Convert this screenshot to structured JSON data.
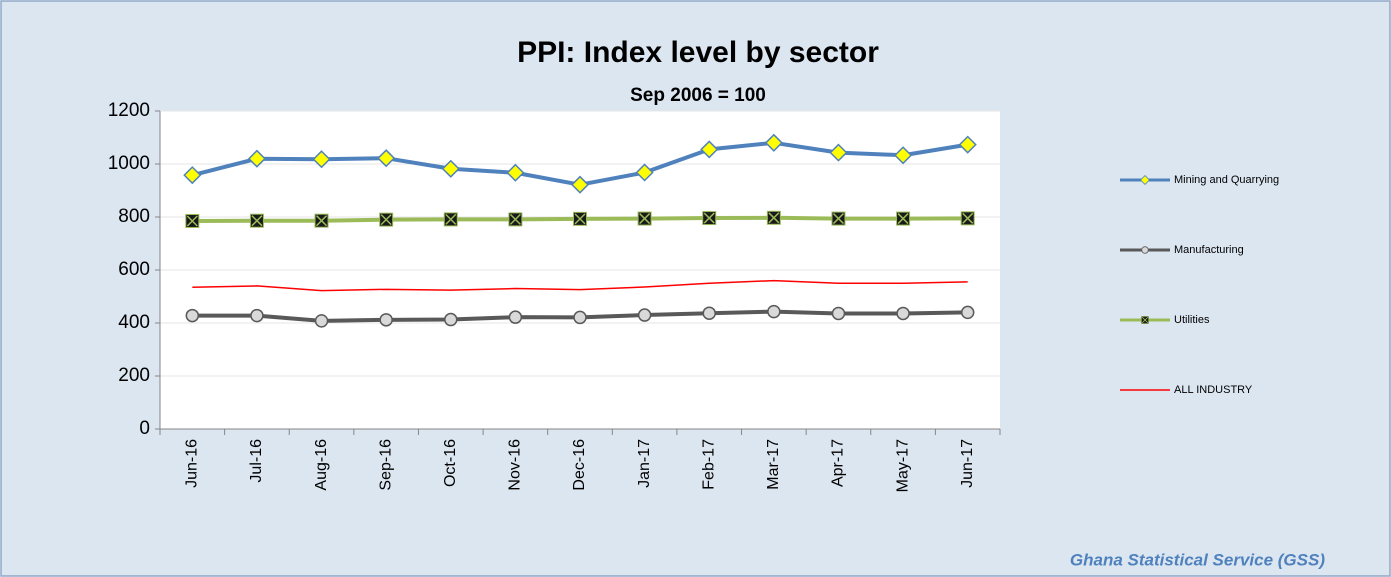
{
  "chart_data": {
    "type": "line",
    "title": "PPI:  Index level by sector",
    "subtitle": "Sep 2006 = 100",
    "source": "Ghana Statistical Service (GSS)",
    "categories": [
      "Jun-16",
      "Jul-16",
      "Aug-16",
      "Sep-16",
      "Oct-16",
      "Nov-16",
      "Dec-16",
      "Jan-17",
      "Feb-17",
      "Mar-17",
      "Apr-17",
      "May-17",
      "Jun-17"
    ],
    "series": [
      {
        "name": "Mining and Quarrying",
        "color": "#4f81bd",
        "marker": "diamond",
        "marker_color": "#ffff00",
        "values": [
          958,
          1020,
          1018,
          1022,
          982,
          967,
          922,
          968,
          1055,
          1080,
          1043,
          1033,
          1073
        ]
      },
      {
        "name": "Manufacturing",
        "color": "#595959",
        "marker": "circle",
        "marker_color": "#d9d9d9",
        "values": [
          428,
          428,
          408,
          412,
          413,
          422,
          421,
          430,
          437,
          443,
          436,
          436,
          440
        ]
      },
      {
        "name": "Utilities",
        "color": "#9bbb59",
        "marker": "square-x",
        "marker_color": "#1a1a1a",
        "values": [
          785,
          786,
          786,
          790,
          791,
          791,
          793,
          794,
          796,
          797,
          794,
          794,
          795
        ]
      },
      {
        "name": "ALL INDUSTRY",
        "color": "#ff0000",
        "marker": "none",
        "values": [
          535,
          540,
          522,
          527,
          524,
          530,
          526,
          536,
          550,
          560,
          550,
          550,
          555
        ]
      }
    ],
    "ylim": [
      0,
      1200
    ],
    "yticks": [
      0,
      200,
      400,
      600,
      800,
      1000,
      1200
    ],
    "grid": true,
    "legend": "right"
  }
}
